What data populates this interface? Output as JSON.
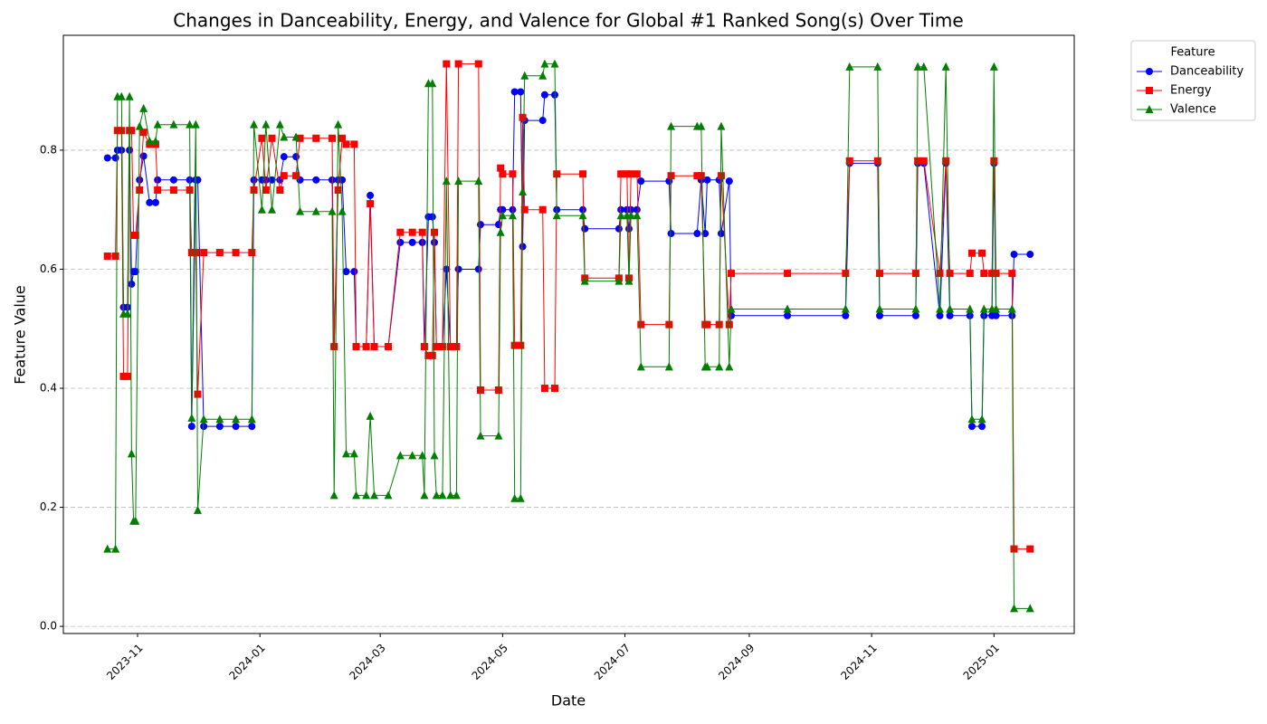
{
  "chart_data": {
    "type": "line",
    "title": "Changes in Danceability, Energy, and Valence for Global #1 Ranked Song(s) Over Time",
    "xlabel": "Date",
    "ylabel": "Feature Value",
    "legend_title": "Feature",
    "legend_position": "outside-upper-right",
    "grid": {
      "axis": "y",
      "style": "dashed"
    },
    "x": [
      "2023-10-17",
      "2023-10-21",
      "2023-10-22",
      "2023-10-24",
      "2023-10-25",
      "2023-10-27",
      "2023-10-28",
      "2023-10-29",
      "2023-10-30",
      "2023-10-31",
      "2023-11-02",
      "2023-11-04",
      "2023-11-07",
      "2023-11-10",
      "2023-11-11",
      "2023-11-19",
      "2023-11-27",
      "2023-11-28",
      "2023-11-30",
      "2023-12-01",
      "2023-12-04",
      "2023-12-12",
      "2023-12-20",
      "2023-12-28",
      "2023-12-29",
      "2024-01-02",
      "2024-01-04",
      "2024-01-07",
      "2024-01-11",
      "2024-01-13",
      "2024-01-19",
      "2024-01-21",
      "2024-01-29",
      "2024-02-06",
      "2024-02-07",
      "2024-02-09",
      "2024-02-11",
      "2024-02-13",
      "2024-02-17",
      "2024-02-18",
      "2024-02-23",
      "2024-02-25",
      "2024-02-27",
      "2024-03-05",
      "2024-03-11",
      "2024-03-17",
      "2024-03-22",
      "2024-03-23",
      "2024-03-25",
      "2024-03-27",
      "2024-03-28",
      "2024-03-29",
      "2024-04-01",
      "2024-04-03",
      "2024-04-05",
      "2024-04-08",
      "2024-04-09",
      "2024-04-19",
      "2024-04-20",
      "2024-04-29",
      "2024-04-30",
      "2024-05-01",
      "2024-05-06",
      "2024-05-07",
      "2024-05-10",
      "2024-05-11",
      "2024-05-12",
      "2024-05-21",
      "2024-05-22",
      "2024-05-27",
      "2024-05-28",
      "2024-06-10",
      "2024-06-11",
      "2024-06-28",
      "2024-06-29",
      "2024-07-02",
      "2024-07-03",
      "2024-07-04",
      "2024-07-07",
      "2024-07-09",
      "2024-07-23",
      "2024-07-24",
      "2024-08-06",
      "2024-08-08",
      "2024-08-10",
      "2024-08-11",
      "2024-08-17",
      "2024-08-18",
      "2024-08-22",
      "2024-08-23",
      "2024-09-20",
      "2024-10-19",
      "2024-10-21",
      "2024-11-04",
      "2024-11-05",
      "2024-11-23",
      "2024-11-24",
      "2024-11-27",
      "2024-12-05",
      "2024-12-08",
      "2024-12-10",
      "2024-12-20",
      "2024-12-21",
      "2024-12-26",
      "2024-12-27",
      "2024-12-31",
      "2025-01-01",
      "2025-01-02",
      "2025-01-10",
      "2025-01-11",
      "2025-01-19"
    ],
    "series": [
      {
        "name": "Danceability",
        "color": "#0000ff",
        "marker": "circle",
        "values": [
          0.787,
          0.787,
          0.8,
          0.8,
          0.536,
          0.536,
          0.8,
          0.575,
          0.596,
          0.596,
          0.75,
          0.79,
          0.712,
          0.712,
          0.75,
          0.75,
          0.75,
          0.336,
          0.75,
          0.75,
          0.336,
          0.336,
          0.336,
          0.336,
          0.75,
          0.75,
          0.75,
          0.75,
          0.75,
          0.789,
          0.789,
          0.75,
          0.75,
          0.75,
          0.47,
          0.75,
          0.75,
          0.596,
          0.596,
          0.47,
          0.47,
          0.724,
          0.47,
          0.47,
          0.645,
          0.645,
          0.645,
          0.47,
          0.688,
          0.688,
          0.645,
          0.47,
          0.47,
          0.6,
          0.47,
          0.47,
          0.6,
          0.6,
          0.675,
          0.675,
          0.7,
          0.7,
          0.7,
          0.898,
          0.898,
          0.638,
          0.85,
          0.85,
          0.893,
          0.893,
          0.7,
          0.7,
          0.668,
          0.668,
          0.7,
          0.7,
          0.668,
          0.7,
          0.7,
          0.748,
          0.748,
          0.66,
          0.66,
          0.75,
          0.66,
          0.75,
          0.75,
          0.66,
          0.748,
          0.522,
          0.522,
          0.522,
          0.778,
          0.778,
          0.522,
          0.522,
          0.778,
          0.778,
          0.522,
          0.778,
          0.522,
          0.522,
          0.336,
          0.336,
          0.522,
          0.522,
          0.778,
          0.522,
          0.522,
          0.625,
          0.625
        ]
      },
      {
        "name": "Energy",
        "color": "#ff0000",
        "marker": "square",
        "values": [
          0.622,
          0.622,
          0.833,
          0.833,
          0.42,
          0.42,
          0.833,
          0.833,
          0.657,
          0.657,
          0.733,
          0.83,
          0.81,
          0.81,
          0.733,
          0.733,
          0.733,
          0.628,
          0.628,
          0.39,
          0.628,
          0.628,
          0.628,
          0.628,
          0.733,
          0.82,
          0.733,
          0.82,
          0.733,
          0.757,
          0.757,
          0.82,
          0.82,
          0.82,
          0.47,
          0.733,
          0.82,
          0.81,
          0.81,
          0.47,
          0.47,
          0.71,
          0.47,
          0.47,
          0.662,
          0.662,
          0.662,
          0.47,
          0.455,
          0.455,
          0.662,
          0.47,
          0.47,
          0.945,
          0.47,
          0.47,
          0.945,
          0.945,
          0.397,
          0.397,
          0.77,
          0.76,
          0.76,
          0.472,
          0.472,
          0.855,
          0.7,
          0.7,
          0.4,
          0.4,
          0.76,
          0.76,
          0.585,
          0.585,
          0.76,
          0.76,
          0.585,
          0.76,
          0.76,
          0.507,
          0.507,
          0.757,
          0.757,
          0.757,
          0.507,
          0.507,
          0.507,
          0.757,
          0.507,
          0.593,
          0.593,
          0.593,
          0.782,
          0.782,
          0.593,
          0.593,
          0.782,
          0.782,
          0.593,
          0.782,
          0.593,
          0.593,
          0.627,
          0.627,
          0.593,
          0.593,
          0.782,
          0.593,
          0.593,
          0.13,
          0.13
        ]
      },
      {
        "name": "Valence",
        "color": "#008000",
        "marker": "triangle",
        "values": [
          0.13,
          0.13,
          0.89,
          0.89,
          0.525,
          0.525,
          0.89,
          0.29,
          0.177,
          0.177,
          0.84,
          0.87,
          0.815,
          0.815,
          0.843,
          0.843,
          0.843,
          0.35,
          0.843,
          0.195,
          0.348,
          0.348,
          0.348,
          0.348,
          0.843,
          0.7,
          0.843,
          0.7,
          0.843,
          0.822,
          0.822,
          0.697,
          0.697,
          0.697,
          0.22,
          0.843,
          0.697,
          0.29,
          0.29,
          0.22,
          0.22,
          0.353,
          0.22,
          0.22,
          0.287,
          0.287,
          0.287,
          0.22,
          0.912,
          0.912,
          0.287,
          0.22,
          0.22,
          0.748,
          0.22,
          0.22,
          0.748,
          0.748,
          0.32,
          0.32,
          0.662,
          0.69,
          0.69,
          0.215,
          0.215,
          0.73,
          0.925,
          0.925,
          0.945,
          0.945,
          0.69,
          0.69,
          0.58,
          0.58,
          0.69,
          0.69,
          0.58,
          0.69,
          0.69,
          0.436,
          0.436,
          0.84,
          0.84,
          0.84,
          0.436,
          0.436,
          0.436,
          0.84,
          0.436,
          0.533,
          0.533,
          0.533,
          0.94,
          0.94,
          0.533,
          0.533,
          0.94,
          0.94,
          0.533,
          0.94,
          0.533,
          0.533,
          0.348,
          0.348,
          0.533,
          0.533,
          0.94,
          0.533,
          0.533,
          0.03,
          0.03
        ]
      }
    ],
    "xlim": [
      "2023-09-25",
      "2025-02-10"
    ],
    "xticks": [
      {
        "value": "2023-11-01",
        "label": "2023-11"
      },
      {
        "value": "2024-01-01",
        "label": "2024-01"
      },
      {
        "value": "2024-03-01",
        "label": "2024-03"
      },
      {
        "value": "2024-05-01",
        "label": "2024-05"
      },
      {
        "value": "2024-07-01",
        "label": "2024-07"
      },
      {
        "value": "2024-09-01",
        "label": "2024-09"
      },
      {
        "value": "2024-11-01",
        "label": "2024-11"
      },
      {
        "value": "2025-01-01",
        "label": "2025-01"
      }
    ],
    "ylim": [
      -0.012,
      0.993
    ],
    "yticks": [
      {
        "value": 0,
        "label": "0.0"
      },
      0.2,
      0.4,
      0.6,
      0.8
    ]
  }
}
